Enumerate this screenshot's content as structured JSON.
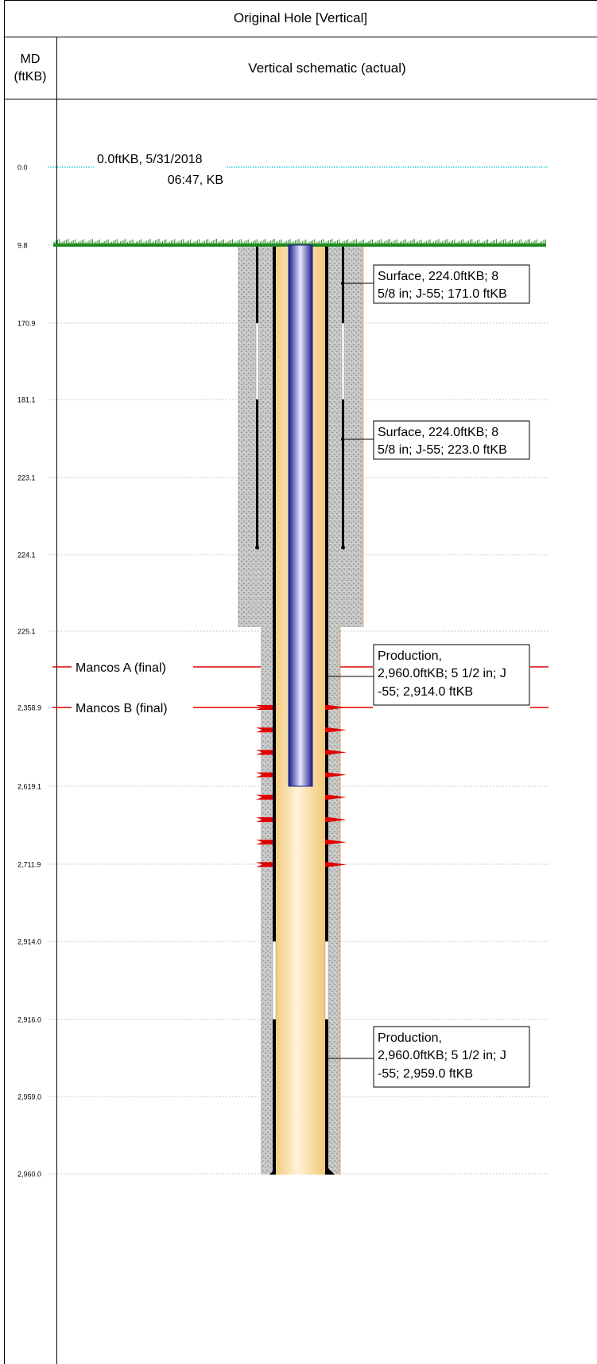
{
  "header": {
    "title": "Original Hole [Vertical]",
    "md_label_line1": "MD",
    "md_label_line2": "(ftKB)",
    "schematic_label": "Vertical schematic (actual)"
  },
  "depth_ticks": [
    {
      "label": "0.0",
      "style": "kb"
    },
    {
      "label": "9.8",
      "style": "ground"
    },
    {
      "label": "170.9",
      "style": "grid"
    },
    {
      "label": "181.1",
      "style": "grid"
    },
    {
      "label": "223.1",
      "style": "grid"
    },
    {
      "label": "224.1",
      "style": "grid"
    },
    {
      "label": "225.1",
      "style": "grid"
    },
    {
      "label": "2,358.9",
      "style": "formation"
    },
    {
      "label": "2,619.1",
      "style": "grid"
    },
    {
      "label": "2,711.9",
      "style": "grid"
    },
    {
      "label": "2,914.0",
      "style": "grid"
    },
    {
      "label": "2,916.0",
      "style": "grid"
    },
    {
      "label": "2,959.0",
      "style": "grid"
    },
    {
      "label": "2,960.0",
      "style": "grid"
    }
  ],
  "kb_annotation": {
    "line1": "0.0ftKB, 5/31/2018",
    "line2": "06:47, KB"
  },
  "formations": [
    {
      "label": "Mancos A (final)"
    },
    {
      "label": "Mancos B (final)"
    }
  ],
  "casing_labels": [
    {
      "line1": "Surface, 224.0ftKB; 8",
      "line2": "5/8 in; J-55; 171.0 ftKB",
      "line3": ""
    },
    {
      "line1": "Surface, 224.0ftKB; 8",
      "line2": "5/8 in; J-55; 223.0 ftKB",
      "line3": ""
    },
    {
      "line1": "Production,",
      "line2": "2,960.0ftKB; 5 1/2 in; J",
      "line3": "-55; 2,914.0 ftKB"
    },
    {
      "line1": "Production,",
      "line2": "2,960.0ftKB; 5 1/2 in; J",
      "line3": "-55; 2,959.0 ftKB"
    }
  ],
  "perforation_count": 8,
  "colors": {
    "kb_line": "#33ccdd",
    "grid_line": "#c8c8c8",
    "ground": "#1f8a1f",
    "cement": "#c8c8c8",
    "casing": "#000000",
    "hole_fill": "#fbe0a8",
    "tubing": "#3a3ab8",
    "formation_line": "#e00000",
    "perforation": "#e00000"
  }
}
